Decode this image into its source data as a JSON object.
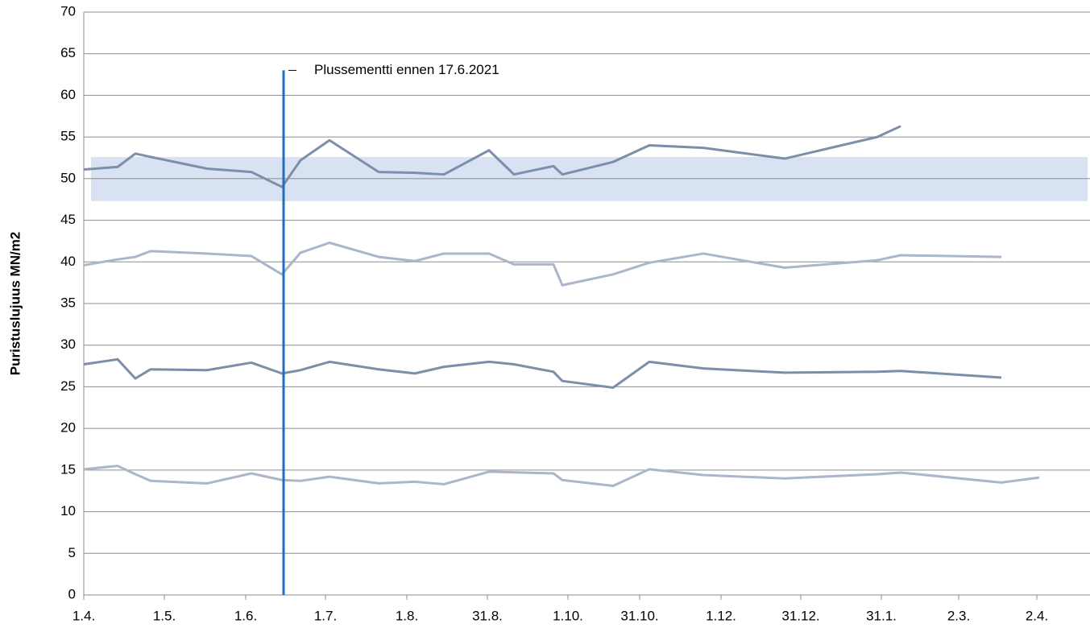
{
  "chart_data": {
    "type": "line",
    "y_label": "Puristuslujuus  MN/m2",
    "xlim": [
      0,
      12.49
    ],
    "xticks": [
      {
        "value": 0,
        "label": "1.4."
      },
      {
        "value": 1,
        "label": "1.5."
      },
      {
        "value": 2.01,
        "label": "1.6."
      },
      {
        "value": 3,
        "label": "1.7."
      },
      {
        "value": 4.01,
        "label": "1.8."
      },
      {
        "value": 5.01,
        "label": "31.8."
      },
      {
        "value": 6.01,
        "label": "1.10."
      },
      {
        "value": 6.9,
        "label": "31.10."
      },
      {
        "value": 7.91,
        "label": "1.12."
      },
      {
        "value": 8.9,
        "label": "31.12."
      },
      {
        "value": 9.9,
        "label": "31.1."
      },
      {
        "value": 10.86,
        "label": "2.3."
      },
      {
        "value": 11.83,
        "label": "2.4."
      }
    ],
    "ylim": [
      0,
      70
    ],
    "yticks": [
      0,
      5,
      10,
      15,
      20,
      25,
      30,
      35,
      40,
      45,
      50,
      55,
      60,
      65,
      70
    ],
    "grid": true,
    "band": {
      "xlim": [
        0.09,
        12.46
      ],
      "ylim": [
        47.3,
        52.6
      ],
      "color": "#d9e2f3"
    },
    "marker": {
      "x": 2.48,
      "ymax": 63,
      "color": "#1f6fbf",
      "label": "Plussementti ennen 17.6.2021"
    },
    "series": [
      {
        "color": "#7d8ea9",
        "x": [
          0,
          0.42,
          0.64,
          0.83,
          1.53,
          2.08,
          2.46,
          2.69,
          3.05,
          3.66,
          4.11,
          4.47,
          5.03,
          5.34,
          5.83,
          5.94,
          6.57,
          7.02,
          7.69,
          8.7,
          9.85,
          10.14
        ],
        "values": [
          51.1,
          51.4,
          53,
          52.6,
          51.2,
          50.8,
          49,
          52.2,
          54.6,
          50.8,
          50.7,
          50.5,
          53.4,
          50.5,
          51.5,
          50.5,
          52,
          54,
          53.7,
          52.4,
          55,
          56.3
        ]
      },
      {
        "color": "#aab6c9",
        "x": [
          0,
          0.42,
          0.64,
          0.83,
          1.53,
          2.08,
          2.46,
          2.69,
          3.05,
          3.66,
          4.11,
          4.47,
          5.03,
          5.34,
          5.83,
          5.94,
          6.57,
          7.02,
          7.69,
          8.7,
          9.85,
          10.14,
          11.39
        ],
        "values": [
          39.6,
          40.3,
          40.6,
          41.3,
          41,
          40.7,
          38.5,
          41.1,
          42.3,
          40.6,
          40.1,
          41,
          41,
          39.7,
          39.7,
          37.2,
          38.5,
          39.9,
          41,
          39.3,
          40.2,
          40.8,
          40.6
        ]
      },
      {
        "color": "#7d8ea9",
        "x": [
          0,
          0.42,
          0.64,
          0.83,
          1.53,
          2.08,
          2.46,
          2.69,
          3.05,
          3.66,
          4.11,
          4.47,
          5.03,
          5.34,
          5.83,
          5.94,
          6.57,
          7.02,
          7.69,
          8.7,
          9.85,
          10.14,
          11.39
        ],
        "values": [
          27.7,
          28.3,
          26,
          27.1,
          27,
          27.9,
          26.6,
          27,
          28,
          27.1,
          26.6,
          27.4,
          28,
          27.7,
          26.8,
          25.7,
          24.9,
          28,
          27.2,
          26.7,
          26.8,
          26.9,
          26.1
        ]
      },
      {
        "color": "#aab6c9",
        "x": [
          0,
          0.42,
          0.64,
          0.83,
          1.53,
          2.08,
          2.46,
          2.69,
          3.05,
          3.66,
          4.11,
          4.47,
          5.03,
          5.83,
          5.94,
          6.57,
          7.02,
          7.69,
          8.7,
          9.85,
          10.14,
          11.39,
          11.86
        ],
        "values": [
          15.1,
          15.5,
          14.5,
          13.7,
          13.4,
          14.6,
          13.8,
          13.7,
          14.2,
          13.4,
          13.6,
          13.3,
          14.8,
          14.6,
          13.8,
          13.1,
          15.1,
          14.4,
          14,
          14.5,
          14.7,
          13.5,
          14.1
        ]
      }
    ]
  }
}
